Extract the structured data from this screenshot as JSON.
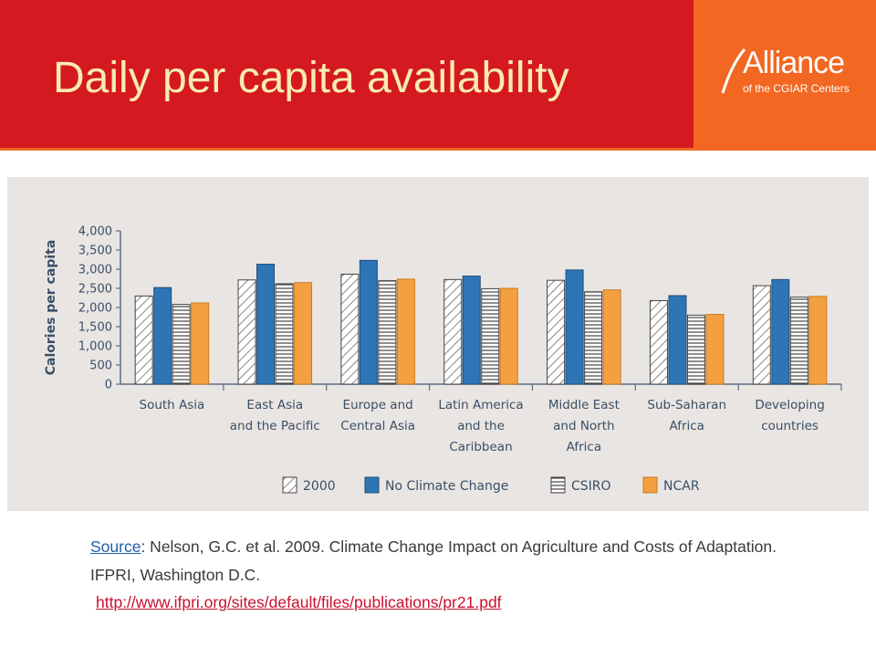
{
  "slide": {
    "title": "Daily per capita availability",
    "logo_word": "Alliance",
    "logo_sub": "of the CGIAR Centers"
  },
  "source": {
    "link_word": "Source",
    "text": ": Nelson, G.C. et al. 2009. Climate Change Impact on Agriculture and Costs of Adaptation. IFPRI, Washington D.C.",
    "url": "http://www.ifpri.org/sites/default/files/publications/pr21.pdf"
  },
  "colors": {
    "header_red": "#d51920",
    "header_orange": "#f26722",
    "series_2000": "#ffffff",
    "series_no_climate_change": "#2e75b6",
    "series_csiro": "#ffffff",
    "series_ncar": "#f5a040"
  },
  "chart_data": {
    "type": "bar",
    "title": "",
    "xlabel": "",
    "ylabel": "Calories per capita",
    "ylim": [
      0,
      4000
    ],
    "yticks": [
      "4,000",
      "3,500",
      "3,000",
      "2,500",
      "2,000",
      "1,500",
      "1,000",
      "500",
      "0"
    ],
    "ytick_values": [
      4000,
      3500,
      3000,
      2500,
      2000,
      1500,
      1000,
      500,
      0
    ],
    "grid": false,
    "legend_position": "bottom",
    "categories": [
      [
        "South Asia"
      ],
      [
        "East Asia",
        "and the Pacific"
      ],
      [
        "Europe and",
        "Central Asia"
      ],
      [
        "Latin America",
        "and the",
        "Caribbean"
      ],
      [
        "Middle East",
        "and North",
        "Africa"
      ],
      [
        "Sub-Saharan",
        "Africa"
      ],
      [
        "Developing",
        "countries"
      ]
    ],
    "series": [
      {
        "name": "2000",
        "pattern": "hatch-diagonal",
        "values": [
          2300,
          2720,
          2870,
          2730,
          2710,
          2180,
          2570
        ]
      },
      {
        "name": "No Climate Change",
        "pattern": "solid-blue",
        "values": [
          2520,
          3130,
          3230,
          2820,
          2980,
          2310,
          2730
        ]
      },
      {
        "name": "CSIRO",
        "pattern": "hatch-horizontal",
        "values": [
          2080,
          2620,
          2700,
          2490,
          2410,
          1800,
          2270
        ]
      },
      {
        "name": "NCAR",
        "pattern": "solid-orange",
        "values": [
          2120,
          2650,
          2740,
          2500,
          2460,
          1820,
          2290
        ]
      }
    ]
  }
}
